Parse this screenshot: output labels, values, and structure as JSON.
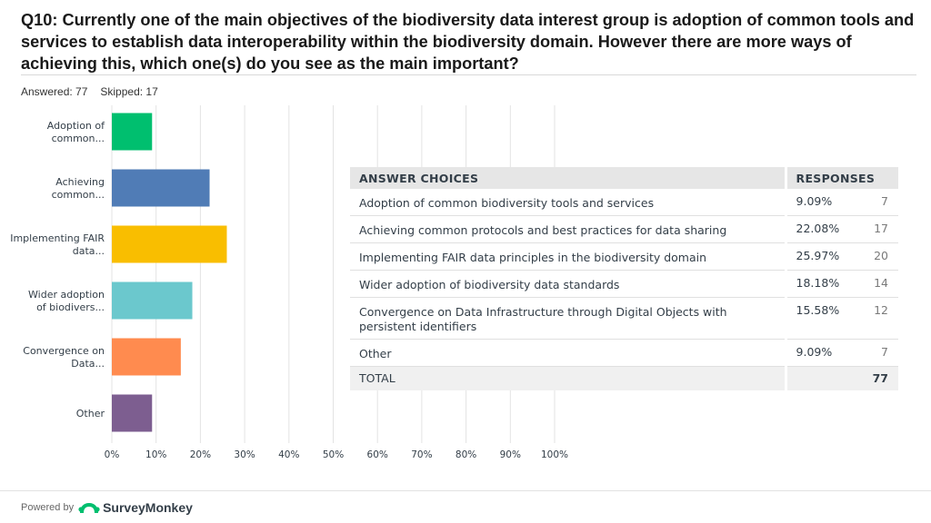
{
  "question": "Q10: Currently one of the main objectives of the biodiversity data interest group is adoption of common tools and services to establish data interoperability within the biodiversity domain. However there are more ways of achieving this, which one(s) do you see as the main important?",
  "stats": {
    "answered": "Answered: 77",
    "skipped": "Skipped: 17"
  },
  "chart_data": {
    "type": "bar",
    "orientation": "horizontal",
    "categories": [
      "Adoption of common...",
      "Achieving common...",
      "Implementing FAIR data...",
      "Wider adoption of biodivers...",
      "Convergence on Data...",
      "Other"
    ],
    "values": [
      9.09,
      22.08,
      25.97,
      18.18,
      15.58,
      9.09
    ],
    "colors": [
      "#00bf6f",
      "#507cb6",
      "#f9be00",
      "#6bc8cd",
      "#ff8b4f",
      "#7d5e90"
    ],
    "xlim": [
      0,
      100
    ],
    "xticks": [
      "0%",
      "10%",
      "20%",
      "30%",
      "40%",
      "50%",
      "60%",
      "70%",
      "80%",
      "90%",
      "100%"
    ],
    "grid": true
  },
  "table": {
    "headers": {
      "answer": "ANSWER CHOICES",
      "responses": "RESPONSES"
    },
    "rows": [
      {
        "answer": "Adoption of common biodiversity tools and services",
        "pct": "9.09%",
        "count": "7"
      },
      {
        "answer": "Achieving common protocols and best practices for data sharing",
        "pct": "22.08%",
        "count": "17"
      },
      {
        "answer": "Implementing FAIR data principles in the biodiversity domain",
        "pct": "25.97%",
        "count": "20"
      },
      {
        "answer": "Wider adoption of biodiversity data standards",
        "pct": "18.18%",
        "count": "14"
      },
      {
        "answer": "Convergence on Data Infrastructure through Digital Objects with persistent identifiers",
        "pct": "15.58%",
        "count": "12"
      },
      {
        "answer": "Other",
        "pct": "9.09%",
        "count": "7"
      }
    ],
    "total": {
      "label": "TOTAL",
      "count": "77"
    }
  },
  "footer": {
    "powered": "Powered by",
    "brand": "SurveyMonkey",
    "logo_icon": "surveymonkey-logo-icon"
  }
}
